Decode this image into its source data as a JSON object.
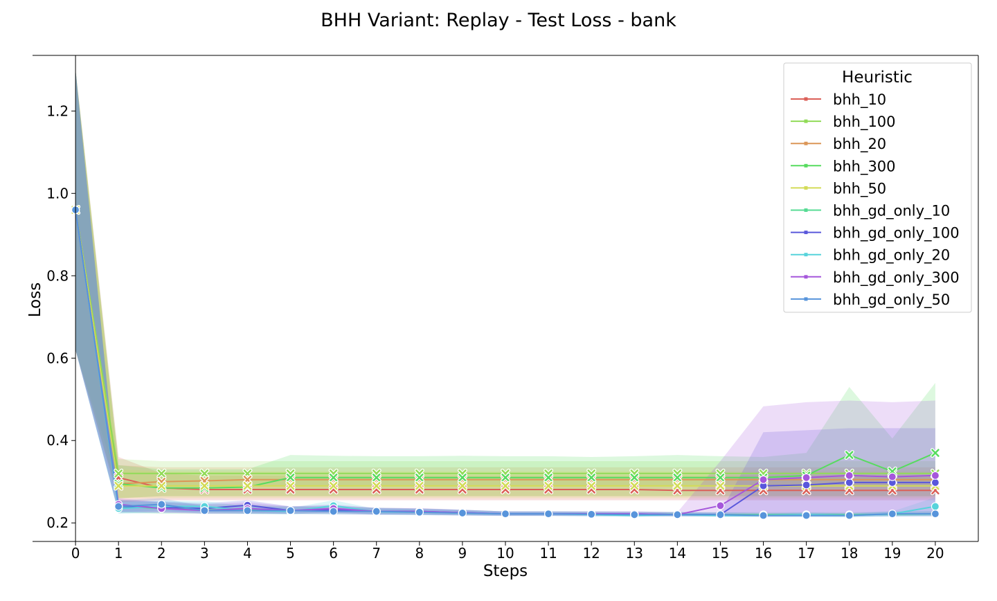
{
  "chart_data": {
    "type": "line",
    "title": "BHH Variant: Replay - Test Loss - bank",
    "xlabel": "Steps",
    "ylabel": "Loss",
    "xlim": [
      -1.0,
      21.0
    ],
    "ylim": [
      0.155,
      1.335
    ],
    "x_ticks": [
      0,
      1,
      2,
      3,
      4,
      5,
      6,
      7,
      8,
      9,
      10,
      11,
      12,
      13,
      14,
      15,
      16,
      17,
      18,
      19,
      20
    ],
    "y_ticks": [
      0.2,
      0.4,
      0.6,
      0.8,
      1.0,
      1.2
    ],
    "legend": {
      "title": "Heuristic",
      "position": "top-right"
    },
    "series": [
      {
        "name": "bhh_10",
        "color": "#db5f57",
        "marker": "x",
        "values": [
          0.96,
          0.31,
          0.285,
          0.281,
          0.281,
          0.281,
          0.281,
          0.281,
          0.281,
          0.281,
          0.281,
          0.281,
          0.281,
          0.281,
          0.279,
          0.279,
          0.279,
          0.279,
          0.279,
          0.279,
          0.279
        ],
        "band_low": [
          0.62,
          0.25,
          0.255,
          0.255,
          0.255,
          0.255,
          0.255,
          0.255,
          0.255,
          0.255,
          0.255,
          0.255,
          0.255,
          0.255,
          0.255,
          0.255,
          0.255,
          0.255,
          0.255,
          0.255,
          0.255
        ],
        "band_high": [
          1.3,
          0.36,
          0.32,
          0.315,
          0.315,
          0.315,
          0.315,
          0.315,
          0.315,
          0.315,
          0.315,
          0.315,
          0.315,
          0.315,
          0.315,
          0.315,
          0.315,
          0.315,
          0.315,
          0.315,
          0.315
        ]
      },
      {
        "name": "bhh_100",
        "color": "#91db57",
        "marker": "x",
        "values": [
          0.96,
          0.32,
          0.32,
          0.32,
          0.32,
          0.32,
          0.32,
          0.32,
          0.32,
          0.32,
          0.32,
          0.32,
          0.32,
          0.32,
          0.32,
          0.32,
          0.32,
          0.32,
          0.32,
          0.32,
          0.32
        ],
        "band_low": [
          0.62,
          0.29,
          0.29,
          0.29,
          0.29,
          0.29,
          0.29,
          0.29,
          0.29,
          0.29,
          0.29,
          0.29,
          0.29,
          0.29,
          0.29,
          0.29,
          0.29,
          0.29,
          0.29,
          0.29,
          0.29
        ],
        "band_high": [
          1.3,
          0.355,
          0.35,
          0.35,
          0.35,
          0.35,
          0.35,
          0.35,
          0.35,
          0.35,
          0.35,
          0.35,
          0.35,
          0.35,
          0.35,
          0.35,
          0.35,
          0.35,
          0.35,
          0.35,
          0.35
        ]
      },
      {
        "name": "bhh_20",
        "color": "#db9657",
        "marker": "x",
        "values": [
          0.96,
          0.295,
          0.3,
          0.302,
          0.305,
          0.305,
          0.305,
          0.305,
          0.305,
          0.305,
          0.305,
          0.305,
          0.305,
          0.305,
          0.305,
          0.305,
          0.305,
          0.305,
          0.305,
          0.305,
          0.305
        ],
        "band_low": [
          0.62,
          0.26,
          0.265,
          0.265,
          0.265,
          0.265,
          0.265,
          0.265,
          0.265,
          0.265,
          0.265,
          0.265,
          0.265,
          0.265,
          0.265,
          0.265,
          0.265,
          0.265,
          0.265,
          0.265,
          0.265
        ],
        "band_high": [
          1.3,
          0.34,
          0.335,
          0.335,
          0.335,
          0.335,
          0.335,
          0.335,
          0.335,
          0.335,
          0.335,
          0.335,
          0.335,
          0.335,
          0.335,
          0.335,
          0.335,
          0.335,
          0.335,
          0.335,
          0.335
        ]
      },
      {
        "name": "bhh_300",
        "color": "#57db5f",
        "marker": "x",
        "values": [
          0.96,
          0.295,
          0.285,
          0.285,
          0.287,
          0.31,
          0.31,
          0.31,
          0.31,
          0.31,
          0.31,
          0.31,
          0.31,
          0.31,
          0.31,
          0.31,
          0.31,
          0.315,
          0.365,
          0.325,
          0.37
        ],
        "band_low": [
          0.62,
          0.26,
          0.265,
          0.265,
          0.265,
          0.265,
          0.265,
          0.265,
          0.265,
          0.265,
          0.265,
          0.265,
          0.265,
          0.265,
          0.265,
          0.265,
          0.265,
          0.265,
          0.265,
          0.265,
          0.265
        ],
        "band_high": [
          1.3,
          0.34,
          0.33,
          0.33,
          0.33,
          0.365,
          0.363,
          0.362,
          0.362,
          0.363,
          0.362,
          0.362,
          0.36,
          0.362,
          0.365,
          0.362,
          0.36,
          0.37,
          0.53,
          0.405,
          0.54
        ]
      },
      {
        "name": "bhh_50",
        "color": "#d3db57",
        "marker": "x",
        "values": [
          0.96,
          0.29,
          0.29,
          0.29,
          0.29,
          0.29,
          0.29,
          0.29,
          0.29,
          0.29,
          0.29,
          0.29,
          0.29,
          0.29,
          0.29,
          0.29,
          0.29,
          0.29,
          0.29,
          0.29,
          0.29
        ],
        "band_low": [
          0.62,
          0.26,
          0.26,
          0.26,
          0.26,
          0.26,
          0.26,
          0.26,
          0.26,
          0.26,
          0.26,
          0.26,
          0.26,
          0.26,
          0.26,
          0.26,
          0.26,
          0.26,
          0.26,
          0.26,
          0.26
        ],
        "band_high": [
          1.3,
          0.33,
          0.325,
          0.325,
          0.325,
          0.325,
          0.325,
          0.325,
          0.325,
          0.325,
          0.325,
          0.325,
          0.325,
          0.325,
          0.325,
          0.325,
          0.325,
          0.325,
          0.325,
          0.325,
          0.325
        ]
      },
      {
        "name": "bhh_gd_only_10",
        "color": "#57db94",
        "marker": "o",
        "values": [
          0.96,
          0.24,
          0.235,
          0.232,
          0.232,
          0.23,
          0.23,
          0.228,
          0.226,
          0.224,
          0.222,
          0.222,
          0.222,
          0.221,
          0.221,
          0.22,
          0.22,
          0.22,
          0.22,
          0.221,
          0.222
        ],
        "band_low": [
          0.62,
          0.225,
          0.222,
          0.222,
          0.222,
          0.222,
          0.222,
          0.221,
          0.22,
          0.219,
          0.218,
          0.218,
          0.218,
          0.217,
          0.217,
          0.216,
          0.216,
          0.216,
          0.216,
          0.217,
          0.217
        ],
        "band_high": [
          1.3,
          0.255,
          0.25,
          0.245,
          0.245,
          0.24,
          0.24,
          0.237,
          0.235,
          0.232,
          0.228,
          0.228,
          0.228,
          0.227,
          0.227,
          0.226,
          0.226,
          0.226,
          0.226,
          0.227,
          0.228
        ]
      },
      {
        "name": "bhh_gd_only_100",
        "color": "#5957db",
        "marker": "o",
        "values": [
          0.96,
          0.24,
          0.238,
          0.235,
          0.243,
          0.23,
          0.232,
          0.228,
          0.228,
          0.225,
          0.222,
          0.222,
          0.222,
          0.222,
          0.22,
          0.22,
          0.29,
          0.292,
          0.298,
          0.298,
          0.298
        ],
        "band_low": [
          0.62,
          0.225,
          0.225,
          0.225,
          0.225,
          0.222,
          0.222,
          0.22,
          0.22,
          0.219,
          0.218,
          0.218,
          0.218,
          0.217,
          0.217,
          0.216,
          0.216,
          0.216,
          0.216,
          0.216,
          0.216
        ],
        "band_high": [
          1.3,
          0.255,
          0.252,
          0.248,
          0.255,
          0.24,
          0.242,
          0.237,
          0.235,
          0.232,
          0.228,
          0.228,
          0.228,
          0.228,
          0.226,
          0.225,
          0.42,
          0.425,
          0.43,
          0.43,
          0.43
        ]
      },
      {
        "name": "bhh_gd_only_20",
        "color": "#57d3db",
        "marker": "o",
        "values": [
          0.96,
          0.235,
          0.24,
          0.24,
          0.23,
          0.228,
          0.242,
          0.227,
          0.226,
          0.224,
          0.222,
          0.222,
          0.22,
          0.218,
          0.22,
          0.218,
          0.218,
          0.22,
          0.218,
          0.222,
          0.24
        ],
        "band_low": [
          0.62,
          0.222,
          0.225,
          0.226,
          0.222,
          0.22,
          0.228,
          0.22,
          0.219,
          0.218,
          0.217,
          0.217,
          0.216,
          0.215,
          0.216,
          0.215,
          0.215,
          0.215,
          0.214,
          0.216,
          0.218
        ],
        "band_high": [
          1.3,
          0.25,
          0.253,
          0.253,
          0.24,
          0.236,
          0.255,
          0.234,
          0.233,
          0.23,
          0.227,
          0.227,
          0.225,
          0.222,
          0.225,
          0.222,
          0.222,
          0.226,
          0.222,
          0.228,
          0.262
        ]
      },
      {
        "name": "bhh_gd_only_300",
        "color": "#a557db",
        "marker": "o",
        "values": [
          0.96,
          0.245,
          0.235,
          0.23,
          0.235,
          0.23,
          0.235,
          0.228,
          0.228,
          0.225,
          0.222,
          0.222,
          0.222,
          0.222,
          0.22,
          0.242,
          0.305,
          0.31,
          0.315,
          0.312,
          0.315
        ],
        "band_low": [
          0.62,
          0.228,
          0.225,
          0.222,
          0.222,
          0.222,
          0.225,
          0.22,
          0.22,
          0.218,
          0.217,
          0.217,
          0.217,
          0.217,
          0.216,
          0.218,
          0.22,
          0.22,
          0.22,
          0.22,
          0.22
        ],
        "band_high": [
          1.3,
          0.26,
          0.25,
          0.245,
          0.25,
          0.24,
          0.245,
          0.236,
          0.236,
          0.232,
          0.228,
          0.228,
          0.228,
          0.228,
          0.226,
          0.35,
          0.483,
          0.493,
          0.497,
          0.493,
          0.497
        ]
      },
      {
        "name": "bhh_gd_only_50",
        "color": "#5794db",
        "marker": "o",
        "values": [
          0.96,
          0.24,
          0.245,
          0.23,
          0.23,
          0.23,
          0.228,
          0.228,
          0.226,
          0.224,
          0.222,
          0.222,
          0.221,
          0.22,
          0.22,
          0.22,
          0.218,
          0.218,
          0.218,
          0.222,
          0.222
        ],
        "band_low": [
          0.62,
          0.225,
          0.23,
          0.222,
          0.222,
          0.222,
          0.22,
          0.22,
          0.219,
          0.218,
          0.217,
          0.217,
          0.216,
          0.215,
          0.216,
          0.215,
          0.214,
          0.214,
          0.214,
          0.216,
          0.216
        ],
        "band_high": [
          1.3,
          0.255,
          0.26,
          0.24,
          0.24,
          0.24,
          0.237,
          0.236,
          0.234,
          0.232,
          0.228,
          0.228,
          0.227,
          0.226,
          0.226,
          0.226,
          0.224,
          0.224,
          0.224,
          0.228,
          0.228
        ]
      }
    ]
  }
}
